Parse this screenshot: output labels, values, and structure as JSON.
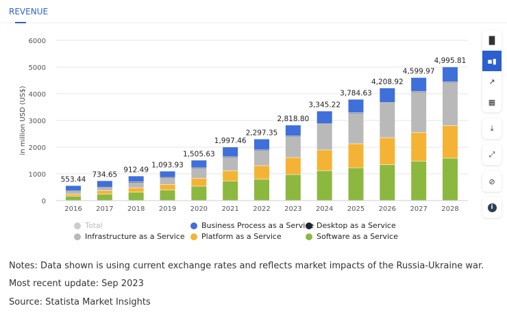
{
  "tab": {
    "label": "REVENUE"
  },
  "chart_data": {
    "type": "bar",
    "stacked": true,
    "ylabel": "in million USD (US$)",
    "ylim": [
      0,
      6000
    ],
    "yticks": [
      0,
      1000,
      2000,
      3000,
      4000,
      5000,
      6000
    ],
    "grid": true,
    "legend_placement": "bottom",
    "categories": [
      "2016",
      "2017",
      "2018",
      "2019",
      "2020",
      "2021",
      "2022",
      "2023",
      "2024",
      "2025",
      "2026",
      "2027",
      "2028"
    ],
    "totals": [
      553.44,
      734.65,
      912.49,
      1093.93,
      1505.63,
      1997.46,
      2297.35,
      2818.8,
      3345.22,
      3784.63,
      4208.92,
      4599.97,
      4995.81
    ],
    "total_labels": [
      "553.44",
      "734.65",
      "912.49",
      "1,093.93",
      "1,505.63",
      "1,997.46",
      "2,297.35",
      "2,818.80",
      "3,345.22",
      "3,784.63",
      "4,208.92",
      "4,599.97",
      "4,995.81"
    ],
    "series": [
      {
        "name": "Software as a Service",
        "color": "#8cb83f",
        "values": [
          155,
          230,
          305,
          385,
          530,
          725,
          790,
          965,
          1110,
          1220,
          1335,
          1470,
          1580
        ]
      },
      {
        "name": "Platform as a Service",
        "color": "#f5b335",
        "values": [
          75,
          130,
          165,
          215,
          300,
          385,
          510,
          640,
          780,
          900,
          1015,
          1075,
          1220
        ]
      },
      {
        "name": "Infrastructure as a Service",
        "color": "#b9b9b9",
        "values": [
          135,
          135,
          215,
          255,
          385,
          515,
          580,
          795,
          975,
          1150,
          1310,
          1520,
          1625
        ]
      },
      {
        "name": "Desktop as a Service",
        "color": "#1b2536",
        "values": [
          3,
          4,
          5,
          6,
          8,
          10,
          12,
          14,
          15,
          15,
          15,
          15,
          15
        ]
      },
      {
        "name": "Business Process as a Service",
        "color": "#3f6fd8",
        "values": [
          185.44,
          235.65,
          222.49,
          232.93,
          282.63,
          362.46,
          405.35,
          404.8,
          465.22,
          499.63,
          533.92,
          519.97,
          555.81
        ]
      }
    ],
    "legend": [
      {
        "name": "Total",
        "color": "#cccccc",
        "disabled": true
      },
      {
        "name": "Business Process as a Service",
        "color": "#3f6fd8"
      },
      {
        "name": "Desktop as a Service",
        "color": "#1b2536"
      },
      {
        "name": "Infrastructure as a Service",
        "color": "#b9b9b9"
      },
      {
        "name": "Platform as a Service",
        "color": "#f5b335"
      },
      {
        "name": "Software as a Service",
        "color": "#8cb83f"
      }
    ]
  },
  "toolbar": {
    "buttons": [
      "bar-chart-icon",
      "stacked-bar-icon",
      "trend-line-icon",
      "table-icon"
    ],
    "active": "stacked-bar-icon",
    "actions": [
      "download-icon",
      "expand-icon",
      "hide-icon",
      "info-icon"
    ]
  },
  "notes": {
    "note": "Notes: Data shown is using current exchange rates and reflects market impacts of the Russia-Ukraine war.",
    "update": "Most recent update: Sep 2023",
    "source": "Source: Statista Market Insights"
  }
}
